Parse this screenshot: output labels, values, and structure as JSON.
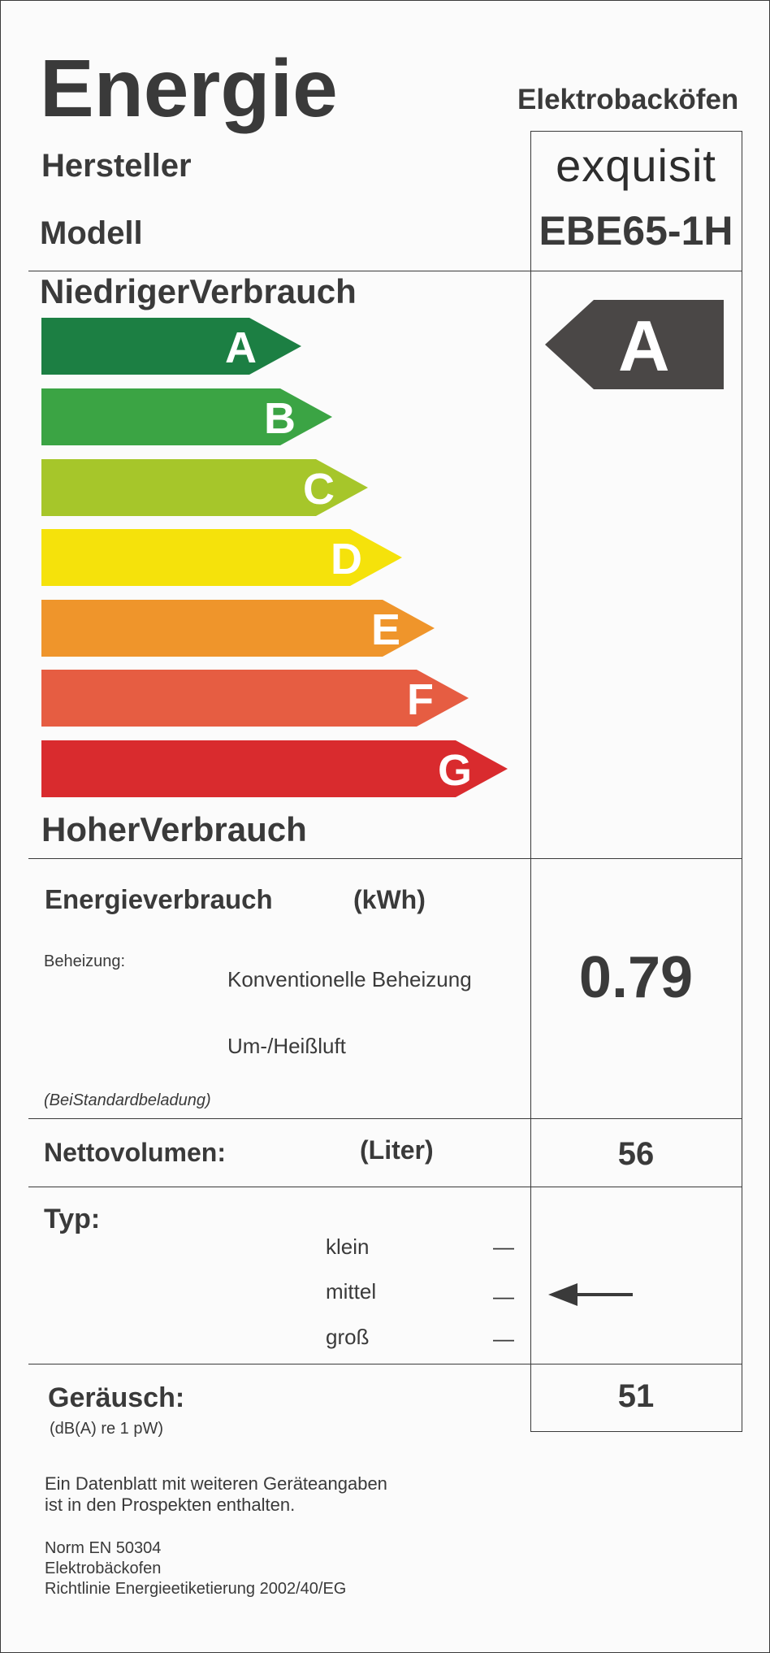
{
  "header": {
    "title": "Energie",
    "category": "Elektrobacköfen",
    "manufacturer_label": "Hersteller",
    "model_label": "Modell",
    "manufacturer": "exquisit",
    "model": "EBE65-1H"
  },
  "efficiency": {
    "low_label": "NiedrigerVerbrauch",
    "high_label": "HoherVerbrauch",
    "classes": [
      {
        "letter": "A",
        "color": "#1c7f43"
      },
      {
        "letter": "B",
        "color": "#3ba444"
      },
      {
        "letter": "C",
        "color": "#a6c62a"
      },
      {
        "letter": "D",
        "color": "#f5e20b"
      },
      {
        "letter": "E",
        "color": "#ef952b"
      },
      {
        "letter": "F",
        "color": "#e65d42"
      },
      {
        "letter": "G",
        "color": "#d92b2e"
      }
    ],
    "rating": "A",
    "rating_color": "#4a4746"
  },
  "consumption": {
    "label": "Energieverbrauch",
    "unit": "(kWh)",
    "heating_label": "Beheizung:",
    "conventional": "Konventionelle Beheizung",
    "convection": "Um-/Heißluft",
    "note": "(BeiStandardbeladung)",
    "value": "0.79"
  },
  "volume": {
    "label": "Nettovolumen:",
    "unit": "(Liter)",
    "value": "56"
  },
  "type": {
    "label": "Typ:",
    "options": [
      "klein",
      "mittel",
      "groß"
    ],
    "dash": "—",
    "selected": "mittel"
  },
  "noise": {
    "label": "Geräusch:",
    "unit": "(dB(A) re 1 pW)",
    "value": "51"
  },
  "footer": {
    "datasheet_line1": "Ein Datenblatt mit weiteren Geräteangaben",
    "datasheet_line2": "ist in den Prospekten enthalten.",
    "norm": "Norm EN 50304",
    "category": "Elektrobäckofen",
    "directive": "Richtlinie Energieetiketierung 2002/40/EG"
  }
}
